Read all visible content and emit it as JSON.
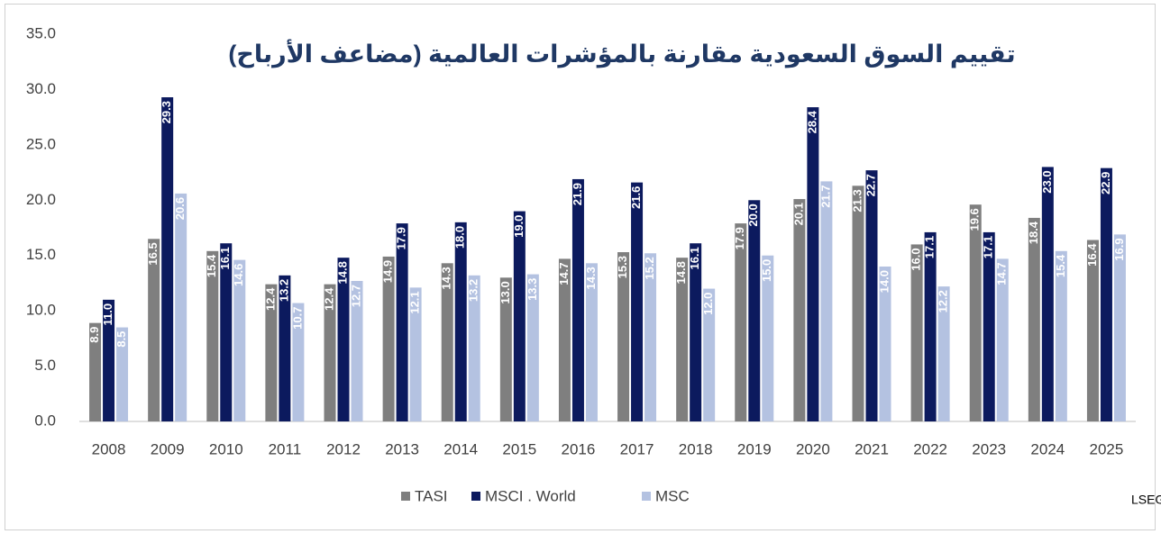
{
  "chart_data": {
    "type": "bar",
    "title": "تقييم السوق السعودية مقارنة بالمؤشرات العالمية (مضاعف الأرباح)",
    "source": "مصدر البيانات: LSEG Refinitiv",
    "categories": [
      "2008",
      "2009",
      "2010",
      "2011",
      "2012",
      "2013",
      "2014",
      "2015",
      "2016",
      "2017",
      "2018",
      "2019",
      "2020",
      "2021",
      "2022",
      "2023",
      "2024",
      "2025"
    ],
    "series": [
      {
        "name": "TASI",
        "color": "#7f7f7f",
        "values": [
          8.9,
          16.5,
          15.4,
          12.4,
          12.4,
          14.9,
          14.3,
          13.0,
          14.7,
          15.3,
          14.8,
          17.9,
          20.1,
          21.3,
          16.0,
          19.6,
          18.4,
          16.4
        ],
        "value_labels": [
          "8.9",
          "16.5",
          "15.4",
          "12.4",
          "12.4",
          "14.9",
          "14.3",
          "13.0",
          "14.7",
          "15.3",
          "14.8",
          "17.9",
          "20.1",
          "21.3",
          "16.0",
          "19.6",
          "18.4",
          "16.4"
        ]
      },
      {
        "name": "MSCI . World",
        "color": "#0c1a5e",
        "values": [
          11.0,
          29.3,
          16.1,
          13.2,
          14.8,
          17.9,
          18.0,
          19.0,
          21.9,
          21.6,
          16.1,
          20.0,
          28.4,
          22.7,
          17.1,
          17.1,
          23.0,
          22.9
        ],
        "value_labels": [
          "11.0",
          "29.3",
          "16.1",
          "13.2",
          "14.8",
          "17.9",
          "18.0",
          "19.0",
          "21.9",
          "21.6",
          "16.1",
          "20.0",
          "28.4",
          "22.7",
          "17.1",
          "17.1",
          "23.0",
          "22.9"
        ]
      },
      {
        "name": "MSC",
        "color": "#b4c2e1",
        "values": [
          8.5,
          20.6,
          14.6,
          10.7,
          12.7,
          12.1,
          13.2,
          13.3,
          14.3,
          15.2,
          12.0,
          15.0,
          21.7,
          14.0,
          12.2,
          14.7,
          15.4,
          16.9
        ],
        "value_labels": [
          "8.5",
          "20.6",
          "14.6",
          "10.7",
          "12.7",
          "12.1",
          "13.2",
          "13.3",
          "14.3",
          "15.2",
          "12.0",
          "15.0",
          "21.7",
          "14.0",
          "12.2",
          "14.7",
          "15.4",
          "16.9"
        ]
      }
    ],
    "ylim": [
      0,
      35
    ],
    "yticks": [
      {
        "value": 0,
        "label": "0.0"
      },
      {
        "value": 5,
        "label": "5.0"
      },
      {
        "value": 10,
        "label": "10.0"
      },
      {
        "value": 15,
        "label": "15.0"
      },
      {
        "value": 20,
        "label": "20.0"
      },
      {
        "value": 25,
        "label": "25.0"
      },
      {
        "value": 30,
        "label": "30.0"
      },
      {
        "value": 35,
        "label": "35.0"
      }
    ],
    "grid": false,
    "legend": "bottom"
  }
}
